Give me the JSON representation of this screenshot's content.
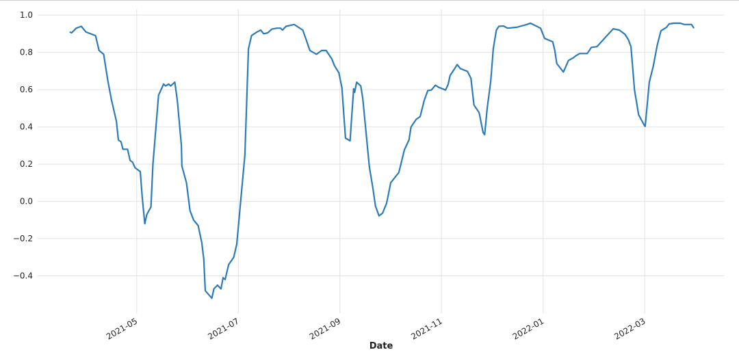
{
  "chart_data": {
    "type": "line",
    "x_label": "Date",
    "xlim": [
      3.05,
      16.56
    ],
    "ylim": [
      -0.6,
      1.03
    ],
    "xticks": [
      {
        "value": 5,
        "label": "2021-05"
      },
      {
        "value": 7,
        "label": "2021-07"
      },
      {
        "value": 9,
        "label": "2021-09"
      },
      {
        "value": 11,
        "label": "2021-11"
      },
      {
        "value": 13,
        "label": "2022-01"
      },
      {
        "value": 15,
        "label": "2022-03"
      }
    ],
    "yticks": [
      {
        "value": -0.4,
        "label": "−0.4"
      },
      {
        "value": -0.2,
        "label": "−0.2"
      },
      {
        "value": 0,
        "label": "0.0"
      },
      0.2,
      0.4,
      0.6,
      0.8,
      {
        "value": 1,
        "label": "1.0"
      }
    ],
    "grid": true,
    "series": [
      {
        "color": "#2b7bb9",
        "x": [
          3.68,
          3.72,
          3.81,
          3.91,
          4.0,
          4.19,
          4.26,
          4.35,
          4.43,
          4.5,
          4.6,
          4.64,
          4.69,
          4.73,
          4.82,
          4.87,
          4.92,
          4.97,
          5.07,
          5.11,
          5.16,
          5.2,
          5.28,
          5.32,
          5.43,
          5.53,
          5.57,
          5.63,
          5.67,
          5.75,
          5.8,
          5.88,
          5.89,
          5.98,
          6.05,
          6.12,
          6.21,
          6.28,
          6.32,
          6.35,
          6.48,
          6.52,
          6.59,
          6.66,
          6.7,
          6.74,
          6.81,
          6.91,
          6.97,
          7.04,
          7.13,
          7.2,
          7.26,
          7.37,
          7.44,
          7.5,
          7.58,
          7.66,
          7.76,
          7.83,
          7.87,
          7.94,
          8.1,
          8.27,
          8.41,
          8.54,
          8.64,
          8.73,
          8.84,
          8.89,
          8.98,
          9.04,
          9.11,
          9.2,
          9.27,
          9.29,
          9.33,
          9.41,
          9.45,
          9.58,
          9.65,
          9.7,
          9.77,
          9.84,
          9.92,
          10.0,
          10.16,
          10.27,
          10.36,
          10.4,
          10.5,
          10.58,
          10.66,
          10.73,
          10.8,
          10.88,
          10.94,
          11.08,
          11.13,
          11.17,
          11.25,
          11.31,
          11.37,
          11.51,
          11.58,
          11.6,
          11.64,
          11.74,
          11.82,
          11.85,
          11.9,
          11.97,
          12.02,
          12.08,
          12.13,
          12.22,
          12.3,
          12.48,
          12.55,
          12.68,
          12.75,
          12.95,
          13.03,
          13.19,
          13.23,
          13.27,
          13.4,
          13.5,
          13.6,
          13.65,
          13.72,
          13.87,
          13.95,
          14.06,
          14.38,
          14.5,
          14.61,
          14.68,
          14.73,
          14.8,
          14.88,
          14.99,
          15.01,
          15.09,
          15.17,
          15.25,
          15.32,
          15.43,
          15.48,
          15.58,
          15.7,
          15.78,
          15.92,
          15.97
        ],
        "values": [
          0.91,
          0.905,
          0.93,
          0.94,
          0.91,
          0.89,
          0.81,
          0.79,
          0.65,
          0.55,
          0.43,
          0.33,
          0.32,
          0.28,
          0.28,
          0.22,
          0.21,
          0.18,
          0.16,
          0.02,
          -0.12,
          -0.07,
          -0.03,
          0.2,
          0.57,
          0.63,
          0.62,
          0.63,
          0.62,
          0.64,
          0.54,
          0.3,
          0.19,
          0.1,
          -0.05,
          -0.1,
          -0.13,
          -0.22,
          -0.31,
          -0.48,
          -0.52,
          -0.47,
          -0.45,
          -0.47,
          -0.41,
          -0.42,
          -0.34,
          -0.3,
          -0.23,
          -0.02,
          0.25,
          0.82,
          0.89,
          0.91,
          0.92,
          0.9,
          0.905,
          0.925,
          0.93,
          0.93,
          0.92,
          0.94,
          0.95,
          0.92,
          0.81,
          0.79,
          0.81,
          0.81,
          0.765,
          0.73,
          0.69,
          0.61,
          0.34,
          0.325,
          0.605,
          0.585,
          0.64,
          0.62,
          0.555,
          0.185,
          0.07,
          -0.025,
          -0.078,
          -0.063,
          -0.01,
          0.1,
          0.155,
          0.277,
          0.33,
          0.4,
          0.44,
          0.455,
          0.543,
          0.595,
          0.598,
          0.624,
          0.613,
          0.598,
          0.628,
          0.676,
          0.709,
          0.735,
          0.713,
          0.698,
          0.66,
          0.61,
          0.517,
          0.477,
          0.369,
          0.358,
          0.5,
          0.646,
          0.82,
          0.92,
          0.94,
          0.942,
          0.93,
          0.935,
          0.94,
          0.95,
          0.957,
          0.93,
          0.875,
          0.857,
          0.81,
          0.74,
          0.695,
          0.757,
          0.772,
          0.783,
          0.794,
          0.794,
          0.827,
          0.831,
          0.927,
          0.92,
          0.898,
          0.868,
          0.831,
          0.598,
          0.465,
          0.41,
          0.403,
          0.64,
          0.728,
          0.842,
          0.916,
          0.935,
          0.953,
          0.957,
          0.957,
          0.95,
          0.95,
          0.93
        ]
      }
    ]
  }
}
